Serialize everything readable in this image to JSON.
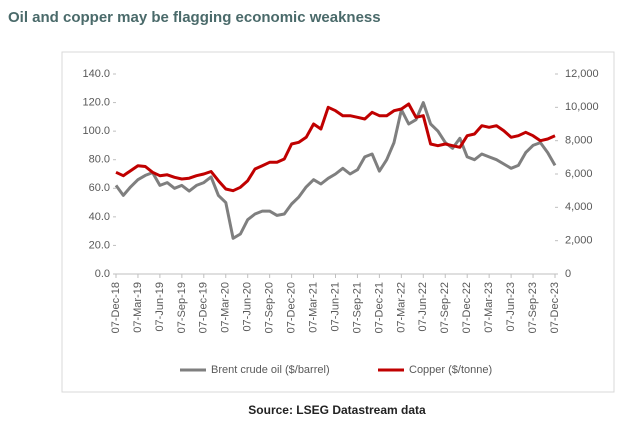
{
  "chart_data": {
    "type": "line",
    "title": "Oil and copper may be flagging economic weakness",
    "source": "Source: LSEG Datastream data",
    "x": [
      "07-Dec-18",
      "07-Jan-19",
      "07-Feb-19",
      "07-Mar-19",
      "07-Apr-19",
      "07-May-19",
      "07-Jun-19",
      "07-Jul-19",
      "07-Aug-19",
      "07-Sep-19",
      "07-Oct-19",
      "07-Nov-19",
      "07-Dec-19",
      "07-Jan-20",
      "07-Feb-20",
      "07-Mar-20",
      "07-Apr-20",
      "07-May-20",
      "07-Jun-20",
      "07-Jul-20",
      "07-Aug-20",
      "07-Sep-20",
      "07-Oct-20",
      "07-Nov-20",
      "07-Dec-20",
      "07-Jan-21",
      "07-Feb-21",
      "07-Mar-21",
      "07-Apr-21",
      "07-May-21",
      "07-Jun-21",
      "07-Jul-21",
      "07-Aug-21",
      "07-Sep-21",
      "07-Oct-21",
      "07-Nov-21",
      "07-Dec-21",
      "07-Jan-22",
      "07-Feb-22",
      "07-Mar-22",
      "07-Apr-22",
      "07-May-22",
      "07-Jun-22",
      "07-Jul-22",
      "07-Aug-22",
      "07-Sep-22",
      "07-Oct-22",
      "07-Nov-22",
      "07-Dec-22",
      "07-Jan-23",
      "07-Feb-23",
      "07-Mar-23",
      "07-Apr-23",
      "07-May-23",
      "07-Jun-23",
      "07-Jul-23",
      "07-Aug-23",
      "07-Sep-23",
      "07-Oct-23",
      "07-Nov-23",
      "07-Dec-23"
    ],
    "xticks": [
      "07-Dec-18",
      "07-Mar-19",
      "07-Jun-19",
      "07-Sep-19",
      "07-Dec-19",
      "07-Mar-20",
      "07-Jun-20",
      "07-Sep-20",
      "07-Dec-20",
      "07-Mar-21",
      "07-Jun-21",
      "07-Sep-21",
      "07-Dec-21",
      "07-Mar-22",
      "07-Jun-22",
      "07-Sep-22",
      "07-Dec-22",
      "07-Mar-23",
      "07-Jun-23",
      "07-Sep-23",
      "07-Dec-23"
    ],
    "series": [
      {
        "name": "Brent crude oil ($/barrel)",
        "color": "#7f7f7f",
        "axis": "y",
        "values": [
          62,
          55,
          61,
          66,
          69,
          71,
          62,
          64,
          60,
          62,
          58,
          62,
          64,
          68,
          55,
          50,
          25,
          28,
          38,
          42,
          44,
          44,
          41,
          42,
          49,
          54,
          61,
          66,
          63,
          67,
          70,
          74,
          70,
          73,
          82,
          84,
          72,
          80,
          92,
          115,
          105,
          108,
          120,
          105,
          100,
          92,
          88,
          95,
          82,
          80,
          84,
          82,
          80,
          77,
          74,
          76,
          85,
          90,
          92,
          85,
          76
        ]
      },
      {
        "name": "Copper ($/tonne)",
        "color": "#c00000",
        "axis": "y2",
        "values": [
          6100,
          5900,
          6200,
          6500,
          6450,
          6100,
          5900,
          5950,
          5800,
          5700,
          5750,
          5900,
          6000,
          6150,
          5600,
          5100,
          5000,
          5200,
          5600,
          6300,
          6500,
          6700,
          6700,
          6900,
          7800,
          7900,
          8200,
          9000,
          8700,
          10000,
          9800,
          9500,
          9500,
          9400,
          9300,
          9700,
          9500,
          9500,
          9800,
          9900,
          10200,
          9400,
          9500,
          7800,
          7700,
          7800,
          7700,
          7600,
          8300,
          8400,
          8900,
          8800,
          8900,
          8600,
          8200,
          8300,
          8500,
          8300,
          8000,
          8100,
          8300
        ]
      }
    ],
    "ylim": [
      0,
      140
    ],
    "yticks": [
      {
        "value": 0,
        "label": "0.0"
      },
      {
        "value": 20,
        "label": "20.0"
      },
      {
        "value": 40,
        "label": "40.0"
      },
      {
        "value": 60,
        "label": "60.0"
      },
      {
        "value": 80,
        "label": "80.0"
      },
      {
        "value": 100,
        "label": "100.0"
      },
      {
        "value": 120,
        "label": "120.0"
      },
      {
        "value": 140,
        "label": "140.0"
      }
    ],
    "y2lim": [
      0,
      12000
    ],
    "y2ticks": [
      0,
      {
        "value": 2000,
        "label": "2,000"
      },
      {
        "value": 4000,
        "label": "4,000"
      },
      {
        "value": 6000,
        "label": "6,000"
      },
      {
        "value": 8000,
        "label": "8,000"
      },
      {
        "value": 10000,
        "label": "10,000"
      },
      {
        "value": 12000,
        "label": "12,000"
      }
    ],
    "grid": false,
    "legend": "bottom"
  }
}
